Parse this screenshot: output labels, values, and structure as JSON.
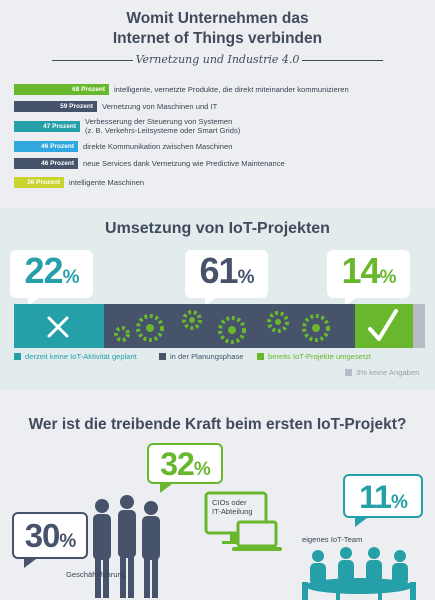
{
  "section1": {
    "title_line1": "Womit Unternehmen das",
    "title_line2": "Internet of Things verbinden",
    "subtitle": "Vernetzung und Industrie 4.0"
  },
  "section2": {
    "title": "Umsetzung von IoT-Projekten",
    "legend": {
      "none": "derzeit keine IoT-Aktivität geplant",
      "planning": "in der Planungsphase",
      "done": "bereits IoT-Projekte umgesetzt",
      "no_answer": "3% keine Angaben"
    }
  },
  "section3": {
    "title": "Wer ist die treibende Kraft beim ersten IoT-Projekt?",
    "items": [
      {
        "value": "30",
        "pct": "%",
        "label": "Geschäftsführung"
      },
      {
        "value": "32",
        "pct": "%",
        "label_line1": "CIOs oder",
        "label_line2": "IT-Abteilung"
      },
      {
        "value": "11",
        "pct": "%",
        "label": "eigenes IoT-Team"
      }
    ]
  },
  "colors": {
    "green": "#69b72c",
    "slate": "#46536b",
    "teal": "#25a0a8",
    "blue": "#30a8df",
    "yellow": "#c9d430",
    "grey": "#b7bcc6",
    "navy": "#2b3548"
  },
  "chart_data": [
    {
      "type": "bar",
      "orientation": "horizontal",
      "title": "Vernetzung und Industrie 4.0",
      "unit": "Prozent",
      "series": [
        {
          "value": 68,
          "value_label": "68 Prozent",
          "label": "intelligente, vernetzte Produkte, die direkt miteinander kommunizieren",
          "color": "#69b72c"
        },
        {
          "value": 59,
          "value_label": "59 Prozent",
          "label": "Vernetzung von Maschinen und IT",
          "color": "#46536b"
        },
        {
          "value": 47,
          "value_label": "47 Prozent",
          "label_line1": "Verbesserung der Steuerung von Systemen",
          "label_line2": "(z. B. Verkehrs-Leitsysteme oder Smart Grids)",
          "color": "#25a0a8"
        },
        {
          "value": 46,
          "value_label": "46 Prozent",
          "label": "direkte Kommunikation zwischen Maschinen",
          "color": "#30a8df"
        },
        {
          "value": 46,
          "value_label": "46 Prozent",
          "label": "neue Services dank Vernetzung wie Predictive Maintenance",
          "color": "#46536b"
        },
        {
          "value": 36,
          "value_label": "36 Prozent",
          "label": "intelligente Maschinen",
          "color": "#c9d430"
        }
      ]
    },
    {
      "type": "bar",
      "orientation": "stacked-horizontal",
      "title": "Umsetzung von IoT-Projekten",
      "segments": [
        {
          "name": "derzeit keine IoT-Aktivität geplant",
          "value": 22,
          "color": "#25a0a8"
        },
        {
          "name": "in der Planungsphase",
          "value": 61,
          "color": "#46536b"
        },
        {
          "name": "bereits IoT-Projekte umgesetzt",
          "value": 14,
          "color": "#69b72c"
        },
        {
          "name": "keine Angaben",
          "value": 3,
          "color": "#b7bcc6"
        }
      ]
    },
    {
      "type": "table",
      "title": "Wer ist die treibende Kraft beim ersten IoT-Projekt?",
      "categories": [
        "Geschäftsführung",
        "CIOs oder IT-Abteilung",
        "eigenes IoT-Team"
      ],
      "values": [
        30,
        32,
        11
      ]
    }
  ]
}
